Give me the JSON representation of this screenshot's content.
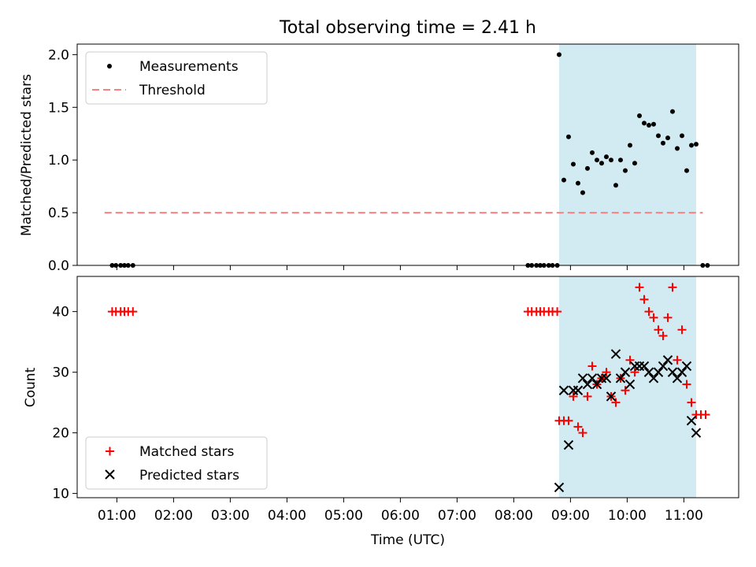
{
  "chart_data": {
    "title": "Total observing time = 2.41 h",
    "shade_x": [
      "08:48",
      "11:13"
    ],
    "x_range": [
      "00:18",
      "11:58"
    ],
    "x_ticks": [
      "01:00",
      "02:00",
      "03:00",
      "04:00",
      "05:00",
      "06:00",
      "07:00",
      "08:00",
      "09:00",
      "10:00",
      "11:00"
    ],
    "xlabel": "Time (UTC)",
    "panels": [
      {
        "id": "top",
        "type": "scatter",
        "ylabel": "Matched/Predicted stars",
        "ylim": [
          0,
          2.1
        ],
        "y_ticks": [
          "0.0",
          "0.5",
          "1.0",
          "1.5",
          "2.0"
        ],
        "legend_position": "top-left",
        "series": [
          {
            "name": "Measurements",
            "marker": "dot",
            "color": "#000000",
            "points": [
              [
                "00:55",
                0
              ],
              [
                "00:59",
                0
              ],
              [
                "01:04",
                0
              ],
              [
                "01:08",
                0
              ],
              [
                "01:12",
                0
              ],
              [
                "01:17",
                0
              ],
              [
                "08:15",
                0
              ],
              [
                "08:19",
                0
              ],
              [
                "08:24",
                0
              ],
              [
                "08:28",
                0
              ],
              [
                "08:32",
                0
              ],
              [
                "08:37",
                0
              ],
              [
                "08:41",
                0
              ],
              [
                "08:46",
                0
              ],
              [
                "08:48",
                2.0
              ],
              [
                "08:53",
                0.81
              ],
              [
                "08:58",
                1.22
              ],
              [
                "09:03",
                0.96
              ],
              [
                "09:08",
                0.78
              ],
              [
                "09:13",
                0.69
              ],
              [
                "09:18",
                0.92
              ],
              [
                "09:23",
                1.07
              ],
              [
                "09:28",
                1.0
              ],
              [
                "09:33",
                0.97
              ],
              [
                "09:38",
                1.03
              ],
              [
                "09:43",
                1.0
              ],
              [
                "09:48",
                0.76
              ],
              [
                "09:53",
                1.0
              ],
              [
                "09:58",
                0.9
              ],
              [
                "10:03",
                1.14
              ],
              [
                "10:08",
                0.97
              ],
              [
                "10:13",
                1.42
              ],
              [
                "10:18",
                1.35
              ],
              [
                "10:23",
                1.33
              ],
              [
                "10:28",
                1.34
              ],
              [
                "10:33",
                1.23
              ],
              [
                "10:38",
                1.16
              ],
              [
                "10:43",
                1.21
              ],
              [
                "10:48",
                1.46
              ],
              [
                "10:53",
                1.11
              ],
              [
                "10:58",
                1.23
              ],
              [
                "11:03",
                0.9
              ],
              [
                "11:08",
                1.14
              ],
              [
                "11:13",
                1.15
              ],
              [
                "11:20",
                0
              ],
              [
                "11:25",
                0
              ]
            ]
          },
          {
            "name": "Threshold",
            "marker": "dashed-line",
            "color": "#ff7f7f",
            "y": 0.5,
            "x": [
              "00:47",
              "11:20"
            ]
          }
        ]
      },
      {
        "id": "bottom",
        "type": "scatter",
        "ylabel": "Count",
        "ylim": [
          9.3,
          45.8
        ],
        "y_ticks": [
          "10",
          "20",
          "30",
          "40"
        ],
        "legend_position": "bottom-left",
        "series": [
          {
            "name": "Matched stars",
            "marker": "plus",
            "color": "#ff0000",
            "points": [
              [
                "00:55",
                40
              ],
              [
                "00:59",
                40
              ],
              [
                "01:04",
                40
              ],
              [
                "01:08",
                40
              ],
              [
                "01:12",
                40
              ],
              [
                "01:17",
                40
              ],
              [
                "08:15",
                40
              ],
              [
                "08:19",
                40
              ],
              [
                "08:24",
                40
              ],
              [
                "08:28",
                40
              ],
              [
                "08:32",
                40
              ],
              [
                "08:37",
                40
              ],
              [
                "08:41",
                40
              ],
              [
                "08:46",
                40
              ],
              [
                "08:48",
                22
              ],
              [
                "08:53",
                22
              ],
              [
                "08:58",
                22
              ],
              [
                "09:03",
                26
              ],
              [
                "09:08",
                21
              ],
              [
                "09:13",
                20
              ],
              [
                "09:18",
                26
              ],
              [
                "09:23",
                31
              ],
              [
                "09:28",
                28
              ],
              [
                "09:33",
                29
              ],
              [
                "09:38",
                30
              ],
              [
                "09:43",
                26
              ],
              [
                "09:48",
                25
              ],
              [
                "09:53",
                29
              ],
              [
                "09:58",
                27
              ],
              [
                "10:03",
                32
              ],
              [
                "10:08",
                30
              ],
              [
                "10:13",
                44
              ],
              [
                "10:18",
                42
              ],
              [
                "10:23",
                40
              ],
              [
                "10:28",
                39
              ],
              [
                "10:33",
                37
              ],
              [
                "10:38",
                36
              ],
              [
                "10:43",
                39
              ],
              [
                "10:48",
                44
              ],
              [
                "10:53",
                32
              ],
              [
                "10:58",
                37
              ],
              [
                "11:03",
                28
              ],
              [
                "11:08",
                25
              ],
              [
                "11:13",
                23
              ],
              [
                "11:18",
                23
              ],
              [
                "11:23",
                23
              ]
            ]
          },
          {
            "name": "Predicted stars",
            "marker": "x",
            "color": "#000000",
            "points": [
              [
                "08:48",
                11
              ],
              [
                "08:53",
                27
              ],
              [
                "08:58",
                18
              ],
              [
                "09:03",
                27
              ],
              [
                "09:08",
                27
              ],
              [
                "09:13",
                29
              ],
              [
                "09:18",
                28
              ],
              [
                "09:23",
                29
              ],
              [
                "09:28",
                28
              ],
              [
                "09:33",
                29
              ],
              [
                "09:38",
                29
              ],
              [
                "09:43",
                26
              ],
              [
                "09:48",
                33
              ],
              [
                "09:53",
                29
              ],
              [
                "09:58",
                30
              ],
              [
                "10:03",
                28
              ],
              [
                "10:08",
                31
              ],
              [
                "10:13",
                31
              ],
              [
                "10:18",
                31
              ],
              [
                "10:23",
                30
              ],
              [
                "10:28",
                29
              ],
              [
                "10:33",
                30
              ],
              [
                "10:38",
                31
              ],
              [
                "10:43",
                32
              ],
              [
                "10:48",
                30
              ],
              [
                "10:53",
                29
              ],
              [
                "10:58",
                30
              ],
              [
                "11:03",
                31
              ],
              [
                "11:08",
                22
              ],
              [
                "11:13",
                20
              ]
            ]
          }
        ]
      }
    ]
  }
}
